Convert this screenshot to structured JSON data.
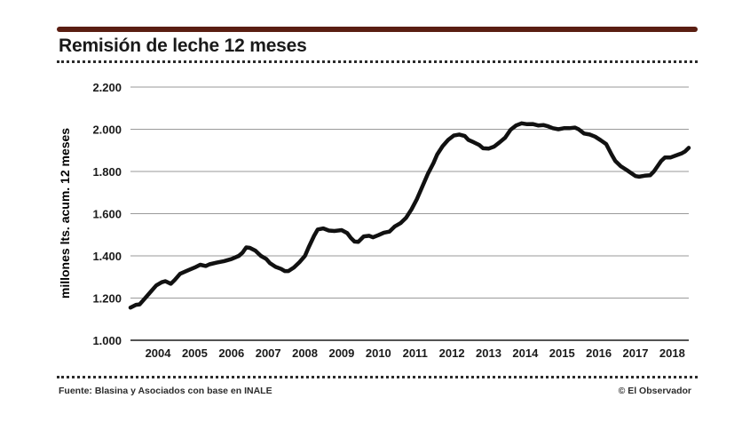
{
  "header": {
    "title": "Remisión de leche 12 meses"
  },
  "footer": {
    "source": "Fuente: Blasina y Asociados con base en INALE",
    "credit": "© El Observador"
  },
  "colors": {
    "rule": "#5a1e12",
    "line": "#111111",
    "grid": "#9a9a9a"
  },
  "chart_data": {
    "type": "line",
    "title": "Remisión de leche 12 meses",
    "ylabel": "millones lts. acum. 12 meses",
    "xlabel": "",
    "ylim": [
      1000,
      2200
    ],
    "xlim": [
      2003.75,
      2018.95
    ],
    "yticks": [
      1000,
      1200,
      1400,
      1600,
      1800,
      2000,
      2200
    ],
    "ytick_labels": [
      "1.000",
      "1.200",
      "1.400",
      "1.600",
      "1.800",
      "2.000",
      "2.200"
    ],
    "xticks": [
      2004,
      2005,
      2006,
      2007,
      2008,
      2009,
      2010,
      2011,
      2012,
      2013,
      2014,
      2015,
      2016,
      2017,
      2018
    ],
    "xtick_labels": [
      "2004",
      "2005",
      "2006",
      "2007",
      "2008",
      "2009",
      "2010",
      "2011",
      "2012",
      "2013",
      "2014",
      "2015",
      "2016",
      "2017",
      "2018"
    ],
    "grid": true,
    "series": [
      {
        "points": [
          [
            2003.75,
            1155
          ],
          [
            2003.9,
            1168
          ],
          [
            2004.0,
            1170
          ],
          [
            2004.15,
            1200
          ],
          [
            2004.3,
            1230
          ],
          [
            2004.45,
            1260
          ],
          [
            2004.6,
            1275
          ],
          [
            2004.7,
            1280
          ],
          [
            2004.85,
            1268
          ],
          [
            2004.95,
            1285
          ],
          [
            2005.1,
            1315
          ],
          [
            2005.3,
            1330
          ],
          [
            2005.5,
            1345
          ],
          [
            2005.65,
            1358
          ],
          [
            2005.8,
            1352
          ],
          [
            2005.9,
            1360
          ],
          [
            2006.1,
            1368
          ],
          [
            2006.3,
            1375
          ],
          [
            2006.5,
            1385
          ],
          [
            2006.7,
            1400
          ],
          [
            2006.8,
            1415
          ],
          [
            2006.9,
            1440
          ],
          [
            2007.0,
            1438
          ],
          [
            2007.15,
            1425
          ],
          [
            2007.3,
            1400
          ],
          [
            2007.45,
            1385
          ],
          [
            2007.55,
            1365
          ],
          [
            2007.7,
            1348
          ],
          [
            2007.85,
            1338
          ],
          [
            2007.95,
            1328
          ],
          [
            2008.05,
            1328
          ],
          [
            2008.2,
            1345
          ],
          [
            2008.35,
            1370
          ],
          [
            2008.5,
            1400
          ],
          [
            2008.6,
            1440
          ],
          [
            2008.75,
            1495
          ],
          [
            2008.85,
            1525
          ],
          [
            2009.0,
            1530
          ],
          [
            2009.15,
            1520
          ],
          [
            2009.3,
            1518
          ],
          [
            2009.5,
            1522
          ],
          [
            2009.65,
            1508
          ],
          [
            2009.75,
            1485
          ],
          [
            2009.85,
            1468
          ],
          [
            2009.95,
            1466
          ],
          [
            2010.1,
            1492
          ],
          [
            2010.25,
            1495
          ],
          [
            2010.35,
            1488
          ],
          [
            2010.5,
            1498
          ],
          [
            2010.65,
            1510
          ],
          [
            2010.8,
            1515
          ],
          [
            2010.95,
            1540
          ],
          [
            2011.1,
            1555
          ],
          [
            2011.25,
            1580
          ],
          [
            2011.4,
            1620
          ],
          [
            2011.55,
            1670
          ],
          [
            2011.7,
            1730
          ],
          [
            2011.85,
            1790
          ],
          [
            2012.0,
            1840
          ],
          [
            2012.1,
            1880
          ],
          [
            2012.25,
            1920
          ],
          [
            2012.4,
            1950
          ],
          [
            2012.55,
            1970
          ],
          [
            2012.7,
            1975
          ],
          [
            2012.85,
            1968
          ],
          [
            2012.95,
            1950
          ],
          [
            2013.1,
            1938
          ],
          [
            2013.25,
            1925
          ],
          [
            2013.35,
            1910
          ],
          [
            2013.5,
            1908
          ],
          [
            2013.65,
            1918
          ],
          [
            2013.8,
            1938
          ],
          [
            2013.95,
            1960
          ],
          [
            2014.1,
            1998
          ],
          [
            2014.25,
            2018
          ],
          [
            2014.4,
            2028
          ],
          [
            2014.55,
            2024
          ],
          [
            2014.7,
            2025
          ],
          [
            2014.85,
            2018
          ],
          [
            2015.0,
            2020
          ],
          [
            2015.1,
            2015
          ],
          [
            2015.25,
            2005
          ],
          [
            2015.4,
            2000
          ],
          [
            2015.55,
            2005
          ],
          [
            2015.7,
            2005
          ],
          [
            2015.85,
            2008
          ],
          [
            2015.95,
            2000
          ],
          [
            2016.1,
            1980
          ],
          [
            2016.25,
            1975
          ],
          [
            2016.4,
            1965
          ],
          [
            2016.55,
            1948
          ],
          [
            2016.7,
            1930
          ],
          [
            2016.85,
            1880
          ],
          [
            2016.95,
            1850
          ],
          [
            2017.1,
            1825
          ],
          [
            2017.25,
            1808
          ],
          [
            2017.4,
            1790
          ],
          [
            2017.5,
            1778
          ],
          [
            2017.6,
            1775
          ],
          [
            2017.75,
            1780
          ],
          [
            2017.9,
            1782
          ],
          [
            2018.0,
            1800
          ],
          [
            2018.1,
            1825
          ],
          [
            2018.2,
            1850
          ],
          [
            2018.3,
            1866
          ],
          [
            2018.45,
            1866
          ],
          [
            2018.6,
            1876
          ],
          [
            2018.75,
            1885
          ],
          [
            2018.85,
            1895
          ],
          [
            2018.95,
            1912
          ]
        ]
      }
    ]
  }
}
